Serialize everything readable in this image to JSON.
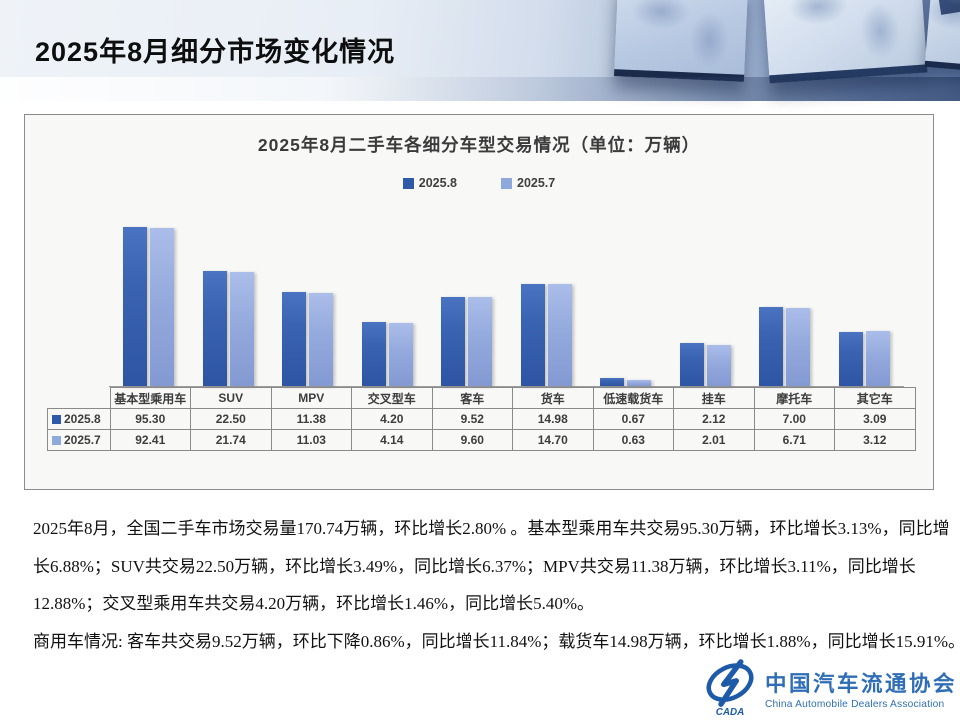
{
  "slide_title": "2025年8月细分市场变化情况",
  "chart_data": {
    "type": "bar",
    "title": "2025年8月二手车各细分车型交易情况（单位：万辆）",
    "unit": "万辆",
    "y_scale": "log",
    "legend_position": "top",
    "grid": false,
    "value_table": true,
    "categories": [
      "基本型乘用车",
      "SUV",
      "MPV",
      "交叉型车",
      "客车",
      "货车",
      "低速载货车",
      "挂车",
      "摩托车",
      "其它车"
    ],
    "series": [
      {
        "name": "2025.8",
        "legend_color": "#2f5aa8",
        "values": [
          95.3,
          22.5,
          11.38,
          4.2,
          9.52,
          14.98,
          0.67,
          2.12,
          7.0,
          3.09
        ]
      },
      {
        "name": "2025.7",
        "legend_color": "#8ea9db",
        "values": [
          92.41,
          21.74,
          11.03,
          4.14,
          9.6,
          14.7,
          0.63,
          2.01,
          6.71,
          3.12
        ]
      }
    ]
  },
  "body_lines": [
    "2025年8月，全国二手车市场交易量170.74万辆，环比增长2.80% 。基本型乘用车共交易95.30万辆，环比增长3.13%，同比增",
    "长6.88%；SUV共交易22.50万辆，环比增长3.49%，同比增长6.37%；MPV共交易11.38万辆，环比增长3.11%，同比增长",
    "12.88%；交叉型乘用车共交易4.20万辆，环比增长1.46%，同比增长5.40%。",
    "商用车情况: 客车共交易9.52万辆，环比下降0.86%，同比增长11.84%；载货车14.98万辆，环比增长1.88%，同比增长15.91%。"
  ],
  "logo": {
    "zh": "中国汽车流通协会",
    "en": "China Automobile Dealers Association",
    "badge": "CADA"
  },
  "colors": {
    "bar_dark": "#2f5aa8",
    "bar_light": "#8ea9db",
    "panel_border": "#8c8c8c",
    "logo_blue": "#2f6eb6"
  }
}
